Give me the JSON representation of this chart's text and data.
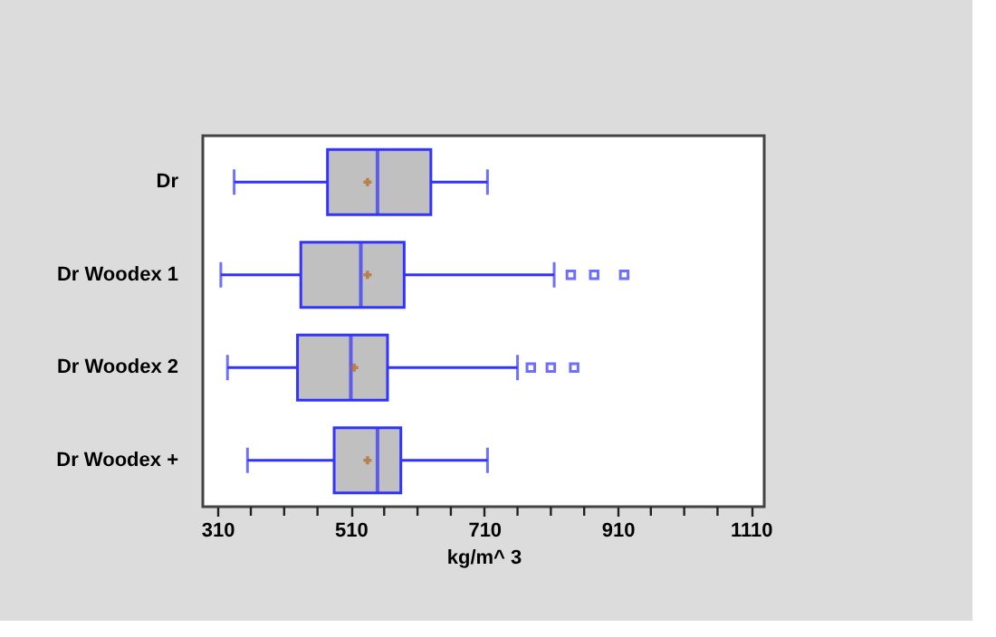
{
  "chart_data": {
    "type": "box",
    "xlabel": "kg/m^ 3",
    "orientation": "horizontal",
    "color": "#3333ff",
    "grid": false,
    "categories": [
      "Dr",
      "Dr Woodex 1",
      "Dr Woodex 2",
      "Dr Woodex +"
    ],
    "boxes": [
      {
        "low": 335,
        "q1": 475,
        "median": 550,
        "q3": 630,
        "high": 715,
        "mean": 535
      },
      {
        "low": 315,
        "q1": 435,
        "median": 525,
        "q3": 590,
        "high": 815,
        "mean": 535,
        "outliers": [
          840,
          875,
          920
        ]
      },
      {
        "low": 325,
        "q1": 430,
        "median": 510,
        "q3": 565,
        "high": 760,
        "mean": 515,
        "outliers": [
          780,
          810,
          845
        ]
      },
      {
        "low": 355,
        "q1": 485,
        "median": 550,
        "q3": 585,
        "high": 715,
        "mean": 535
      }
    ],
    "xlim": [
      288,
      1130
    ],
    "xticks": [
      310,
      {
        "value": 360,
        "label": null
      },
      {
        "value": 410,
        "label": null
      },
      {
        "value": 460,
        "label": null
      },
      510,
      {
        "value": 560,
        "label": null
      },
      {
        "value": 610,
        "label": null
      },
      {
        "value": 660,
        "label": null
      },
      710,
      {
        "value": 760,
        "label": null
      },
      {
        "value": 810,
        "label": null
      },
      {
        "value": 860,
        "label": null
      },
      910,
      {
        "value": 960,
        "label": null
      },
      {
        "value": 1010,
        "label": null
      },
      {
        "value": 1060,
        "label": null
      },
      1110
    ]
  }
}
